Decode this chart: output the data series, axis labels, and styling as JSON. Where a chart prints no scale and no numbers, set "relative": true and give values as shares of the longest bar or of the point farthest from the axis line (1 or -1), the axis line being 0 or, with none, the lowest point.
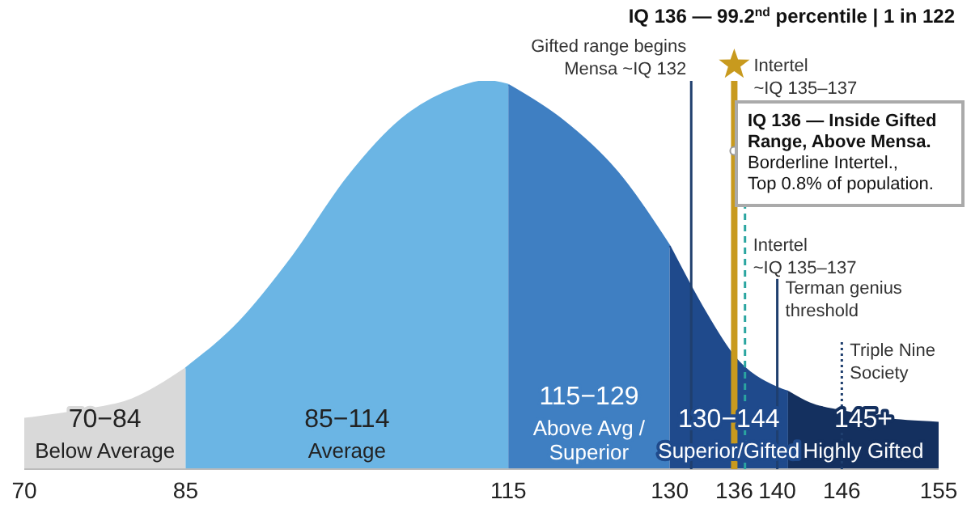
{
  "chart_data": {
    "type": "area",
    "relative": true,
    "title": "IQ 136 — 99.2$^{nd}$ percentile | 1 in 122",
    "xlim": [
      70,
      155
    ],
    "xticks": [
      70,
      85,
      115,
      130,
      136,
      140,
      146,
      155
    ],
    "series": [
      {
        "name": "70−84\nBelow Average",
        "color": "#d9d9d9",
        "x": [
          70,
          75,
          80,
          85
        ],
        "values": [
          0.13,
          0.15,
          0.18,
          0.26
        ]
      },
      {
        "name": "85−114\nAverage",
        "color": "#6bb5e4",
        "x": [
          85,
          90,
          95,
          100,
          105,
          110,
          113,
          115
        ],
        "values": [
          0.26,
          0.38,
          0.55,
          0.75,
          0.9,
          0.98,
          1.0,
          0.99
        ]
      },
      {
        "name": "115−129\nAbove Avg /\nSuperior",
        "color": "#3f7fc2",
        "x": [
          115,
          120,
          125,
          130
        ],
        "values": [
          0.99,
          0.9,
          0.77,
          0.575
        ]
      },
      {
        "name": "130−144\nSuperior/Gifted",
        "color": "#1f4a8c",
        "x": [
          130,
          133,
          136,
          140,
          141
        ],
        "values": [
          0.575,
          0.42,
          0.29,
          0.21,
          0.2
        ]
      },
      {
        "name": "145+\nHighly Gifted",
        "color": "#14305f",
        "x": [
          141,
          143,
          146,
          150,
          155
        ],
        "values": [
          0.2,
          0.17,
          0.15,
          0.13,
          0.12
        ]
      }
    ],
    "ref_lines": [
      {
        "axis": "x",
        "value": 132,
        "label": "Gifted range begins\nMensa ~IQ 132",
        "color": "#1f3f6e",
        "line_style": "solid"
      },
      {
        "axis": "x",
        "value": 136,
        "label": null,
        "color": "#c89a1e",
        "line_style": "solid"
      },
      {
        "axis": "x",
        "value": 137,
        "label": "Intertel\n~IQ 135–137",
        "color": "#2aa5a0",
        "line_style": "dashed"
      },
      {
        "axis": "x",
        "value": 140,
        "label": "Terman genius\nthreshold",
        "color": "#1f3f6e",
        "line_style": "solid"
      },
      {
        "axis": "x",
        "value": 146,
        "label": "Triple Nine\nSociety",
        "color": "#1f3f6e",
        "line_style": "dotted"
      }
    ],
    "annotations": [
      {
        "text": "IQ 136 — Inside Gifted\nRange, Above Mensa.",
        "x": 136,
        "y": 0.82
      },
      "Borderline Intertel.,\nTop 0.8% of population.",
      "Intertel\n~IQ 135–137"
    ],
    "grid": false,
    "legend": false
  }
}
